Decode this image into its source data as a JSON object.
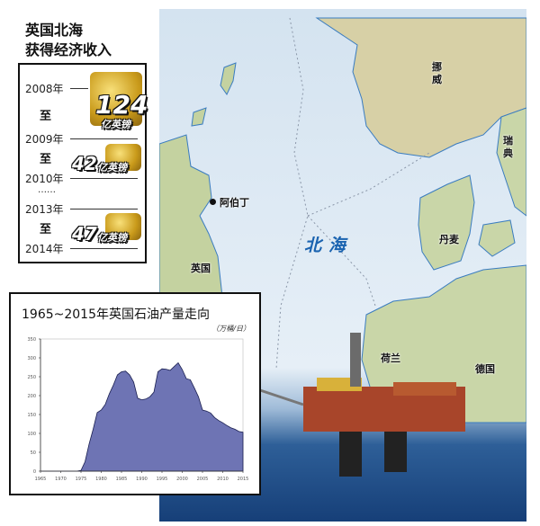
{
  "heading": {
    "line1": "英国北海",
    "line2": "获得经济收入"
  },
  "revenue": [
    {
      "from": "2008年",
      "to": "2009年",
      "sep": "至",
      "amount": "124",
      "unit": "亿英镑"
    },
    {
      "from": "2009年",
      "to": "2010年",
      "sep": "至",
      "amount": "42",
      "unit": "亿英镑"
    },
    {
      "from": "2013年",
      "to": "2014年",
      "sep": "至",
      "amount": "47",
      "unit": "亿英镑"
    }
  ],
  "ellipsis": "……",
  "map": {
    "labels": {
      "norway": "挪威",
      "sweden": "瑞典",
      "aberdeen": "阿伯丁",
      "north_sea": "北海",
      "denmark": "丹麦",
      "uk": "英国",
      "netherlands": "荷兰",
      "germany": "德国"
    },
    "colors": {
      "sea": "#dfeaf4",
      "land": "#c9d6a8",
      "coast": "#3a7cc0",
      "north_sea_label": "#1a63b0",
      "deep_sea": "#1f4f8a"
    }
  },
  "chart_data": {
    "type": "area",
    "title": "1965~2015年英国石油产量走向",
    "unit": "（万桶/日）",
    "xlim": [
      1965,
      2015
    ],
    "ylim": [
      0,
      350
    ],
    "xticks": [
      1965,
      1970,
      1975,
      1980,
      1985,
      1990,
      1995,
      2000,
      2005,
      2010,
      2015
    ],
    "yticks": [
      0,
      50,
      100,
      150,
      200,
      250,
      300,
      350
    ],
    "fill": "#6e74b4",
    "grid": false,
    "x": [
      1965,
      1966,
      1967,
      1968,
      1969,
      1970,
      1971,
      1972,
      1973,
      1974,
      1975,
      1976,
      1977,
      1978,
      1979,
      1980,
      1981,
      1982,
      1983,
      1984,
      1985,
      1986,
      1987,
      1988,
      1989,
      1990,
      1991,
      1992,
      1993,
      1994,
      1995,
      1996,
      1997,
      1998,
      1999,
      2000,
      2001,
      2002,
      2003,
      2004,
      2005,
      2006,
      2007,
      2008,
      2009,
      2010,
      2011,
      2012,
      2013,
      2014,
      2015
    ],
    "y": [
      0,
      0,
      0,
      0,
      0,
      0,
      0,
      0,
      0,
      0,
      2,
      25,
      72,
      111,
      155,
      162,
      177,
      205,
      228,
      255,
      263,
      265,
      255,
      236,
      193,
      189,
      191,
      197,
      209,
      263,
      271,
      270,
      267,
      277,
      287,
      269,
      245,
      242,
      220,
      197,
      162,
      159,
      154,
      142,
      134,
      128,
      121,
      115,
      111,
      105,
      103
    ]
  }
}
